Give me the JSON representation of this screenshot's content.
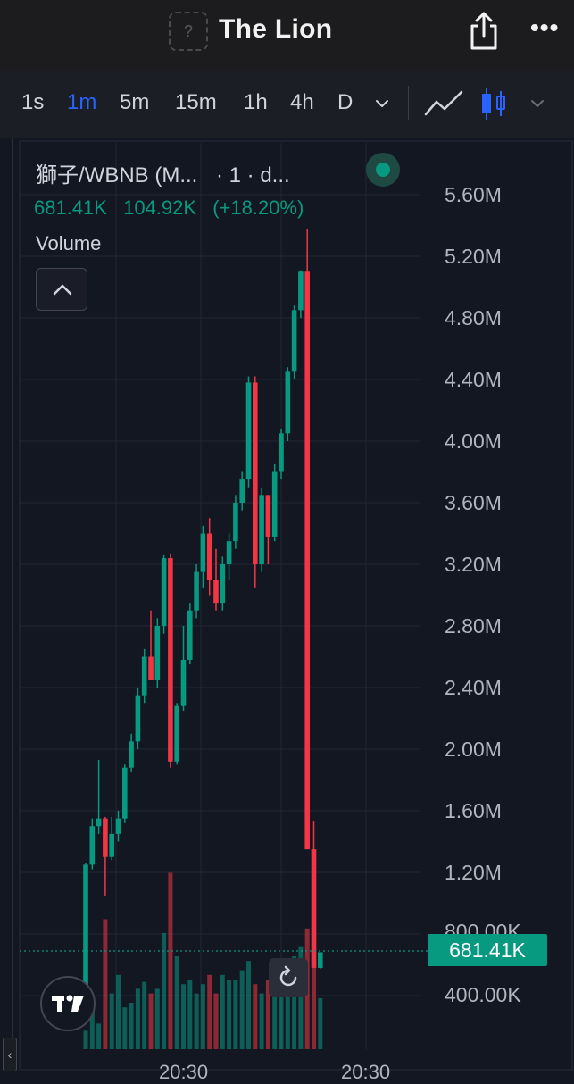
{
  "header": {
    "token_icon_glyph": "?",
    "title": "The Lion",
    "icons": [
      "token-placeholder-icon",
      "share-icon",
      "more-icon"
    ],
    "more_glyph": "•••"
  },
  "toolbar": {
    "timeframes": [
      "1s",
      "1m",
      "5m",
      "15m",
      "1h",
      "4h",
      "D"
    ],
    "active_timeframe": "1m",
    "icons": [
      "chevron-down-icon",
      "line-chart-icon",
      "candlestick-icon",
      "chevron-down-icon"
    ]
  },
  "legend": {
    "symbol": "獅子/WBNB (M...",
    "interval": "· 1 · d...",
    "last_price": "681.41K",
    "change_abs": "104.92K",
    "change_pct": "(+18.20%)",
    "volume_label": "Volume"
  },
  "colors": {
    "up": "#089981",
    "down": "#f23645",
    "background": "#131722",
    "grid": "#232734",
    "active_tab": "#2962ff"
  },
  "price_axis": {
    "labels": [
      "5.60M",
      "5.20M",
      "4.80M",
      "4.40M",
      "4.00M",
      "3.60M",
      "3.20M",
      "2.80M",
      "2.40M",
      "2.00M",
      "1.60M",
      "1.20M",
      "800.00K",
      "400.00K"
    ],
    "current_price_tag": "681.41K"
  },
  "time_axis": {
    "labels": [
      "20:30",
      "20:30"
    ]
  },
  "scroll_handle_glyph": "‹",
  "chart_data": {
    "type": "candlestick",
    "ylim": [
      0,
      5800000
    ],
    "current_price": 681410,
    "candles": [
      {
        "o": 310000,
        "h": 1260000,
        "l": 300000,
        "c": 1250000
      },
      {
        "o": 1250000,
        "h": 1550000,
        "l": 1220000,
        "c": 1500000
      },
      {
        "o": 1500000,
        "h": 1930000,
        "l": 1450000,
        "c": 1550000
      },
      {
        "o": 1550000,
        "h": 1560000,
        "l": 1050000,
        "c": 1300000
      },
      {
        "o": 1300000,
        "h": 1560000,
        "l": 1280000,
        "c": 1450000
      },
      {
        "o": 1450000,
        "h": 1600000,
        "l": 1400000,
        "c": 1550000
      },
      {
        "o": 1550000,
        "h": 1900000,
        "l": 1520000,
        "c": 1880000
      },
      {
        "o": 1880000,
        "h": 2100000,
        "l": 1850000,
        "c": 2050000
      },
      {
        "o": 2050000,
        "h": 2400000,
        "l": 2000000,
        "c": 2350000
      },
      {
        "o": 2350000,
        "h": 2650000,
        "l": 2300000,
        "c": 2600000
      },
      {
        "o": 2600000,
        "h": 2900000,
        "l": 2450000,
        "c": 2450000
      },
      {
        "o": 2450000,
        "h": 2850000,
        "l": 2400000,
        "c": 2800000
      },
      {
        "o": 2800000,
        "h": 3260000,
        "l": 2750000,
        "c": 3240000
      },
      {
        "o": 3240000,
        "h": 3270000,
        "l": 1880000,
        "c": 1920000
      },
      {
        "o": 1920000,
        "h": 2300000,
        "l": 1900000,
        "c": 2280000
      },
      {
        "o": 2280000,
        "h": 2800000,
        "l": 2250000,
        "c": 2580000
      },
      {
        "o": 2580000,
        "h": 2950000,
        "l": 2550000,
        "c": 2900000
      },
      {
        "o": 2900000,
        "h": 3200000,
        "l": 2850000,
        "c": 3150000
      },
      {
        "o": 3150000,
        "h": 3450000,
        "l": 3050000,
        "c": 3400000
      },
      {
        "o": 3400000,
        "h": 3500000,
        "l": 3000000,
        "c": 3100000
      },
      {
        "o": 3100000,
        "h": 3300000,
        "l": 2900000,
        "c": 2950000
      },
      {
        "o": 2950000,
        "h": 3250000,
        "l": 2900000,
        "c": 3200000
      },
      {
        "o": 3200000,
        "h": 3400000,
        "l": 3100000,
        "c": 3350000
      },
      {
        "o": 3350000,
        "h": 3650000,
        "l": 3300000,
        "c": 3600000
      },
      {
        "o": 3600000,
        "h": 3800000,
        "l": 3550000,
        "c": 3750000
      },
      {
        "o": 3750000,
        "h": 4420000,
        "l": 3700000,
        "c": 4380000
      },
      {
        "o": 4380000,
        "h": 4420000,
        "l": 3050000,
        "c": 3200000
      },
      {
        "o": 3200000,
        "h": 3700000,
        "l": 3150000,
        "c": 3650000
      },
      {
        "o": 3650000,
        "h": 3650000,
        "l": 3200000,
        "c": 3380000
      },
      {
        "o": 3380000,
        "h": 3850000,
        "l": 3350000,
        "c": 3800000
      },
      {
        "o": 3800000,
        "h": 4080000,
        "l": 3750000,
        "c": 4050000
      },
      {
        "o": 4050000,
        "h": 4480000,
        "l": 4000000,
        "c": 4450000
      },
      {
        "o": 4450000,
        "h": 4880000,
        "l": 4400000,
        "c": 4850000
      },
      {
        "o": 4850000,
        "h": 5110000,
        "l": 4800000,
        "c": 5100000
      },
      {
        "o": 5100000,
        "h": 5380000,
        "l": 1350000,
        "c": 1350000
      },
      {
        "o": 1350000,
        "h": 1530000,
        "l": 580000,
        "c": 580000
      },
      {
        "o": 580000,
        "h": 681410,
        "l": 575000,
        "c": 681410
      }
    ],
    "volumes": [
      40,
      90,
      55,
      280,
      120,
      160,
      90,
      100,
      130,
      145,
      120,
      130,
      250,
      380,
      200,
      140,
      150,
      120,
      140,
      160,
      120,
      160,
      150,
      150,
      170,
      190,
      140,
      120,
      150,
      170,
      160,
      190,
      200,
      220,
      260,
      230,
      110
    ]
  }
}
